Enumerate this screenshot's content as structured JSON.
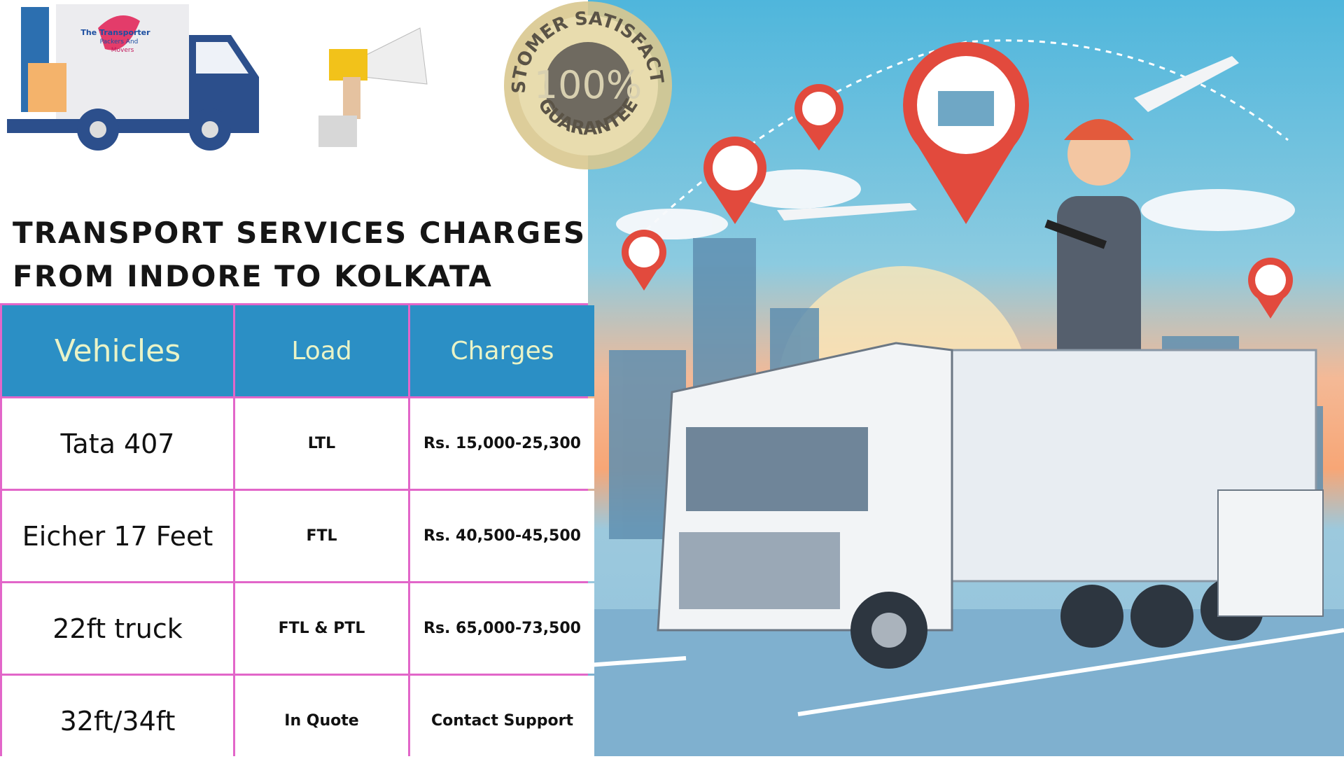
{
  "logo": {
    "lines": [
      "The Transporter",
      "Packers And",
      "Movers"
    ]
  },
  "badge": {
    "top": "CUSTOMER SATISFACTION",
    "center": "100%",
    "bottom": "GUARANTEE"
  },
  "title": [
    "Transport Services Charges",
    "From Indore to Kolkata"
  ],
  "table": {
    "headers": [
      "Vehicles",
      "Load",
      "Charges"
    ],
    "rows": [
      [
        "Tata 407",
        "LTL",
        "Rs. 15,000-25,300"
      ],
      [
        "Eicher 17 Feet",
        "FTL",
        "Rs. 40,500-45,500"
      ],
      [
        "22ft truck",
        "FTL & PTL",
        "Rs. 65,000-73,500"
      ],
      [
        "32ft/34ft",
        "In Quote",
        "Contact Support"
      ]
    ]
  }
}
